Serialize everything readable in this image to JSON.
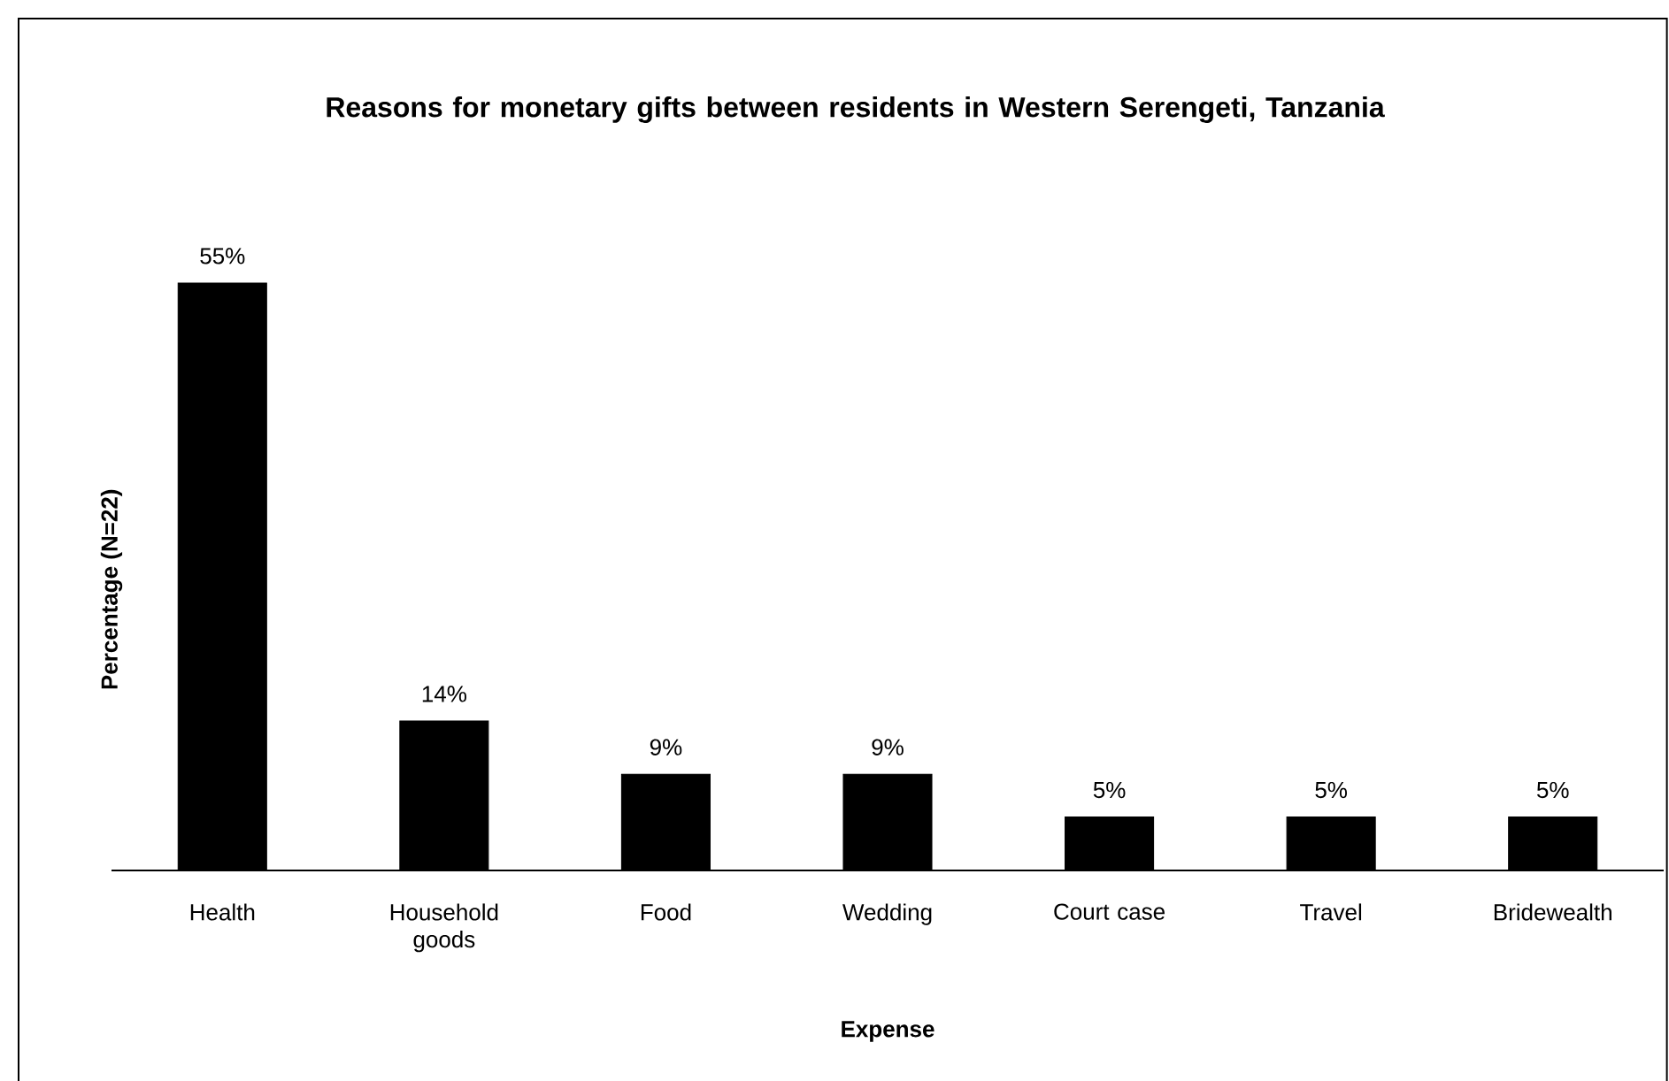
{
  "chart_data": {
    "type": "bar",
    "title": "Reasons for monetary gifts between residents in Western Serengeti, Tanzania",
    "xlabel": "Expense",
    "ylabel": "Percentage (N=22)",
    "categories": [
      "Health",
      "Household goods",
      "Food",
      "Wedding",
      "Court case",
      "Travel",
      "Bridewealth"
    ],
    "values": [
      55,
      14,
      9,
      9,
      5,
      5,
      5
    ],
    "value_labels": [
      "55%",
      "14%",
      "9%",
      "9%",
      "5%",
      "5%",
      "5%"
    ],
    "color": "#000000"
  }
}
